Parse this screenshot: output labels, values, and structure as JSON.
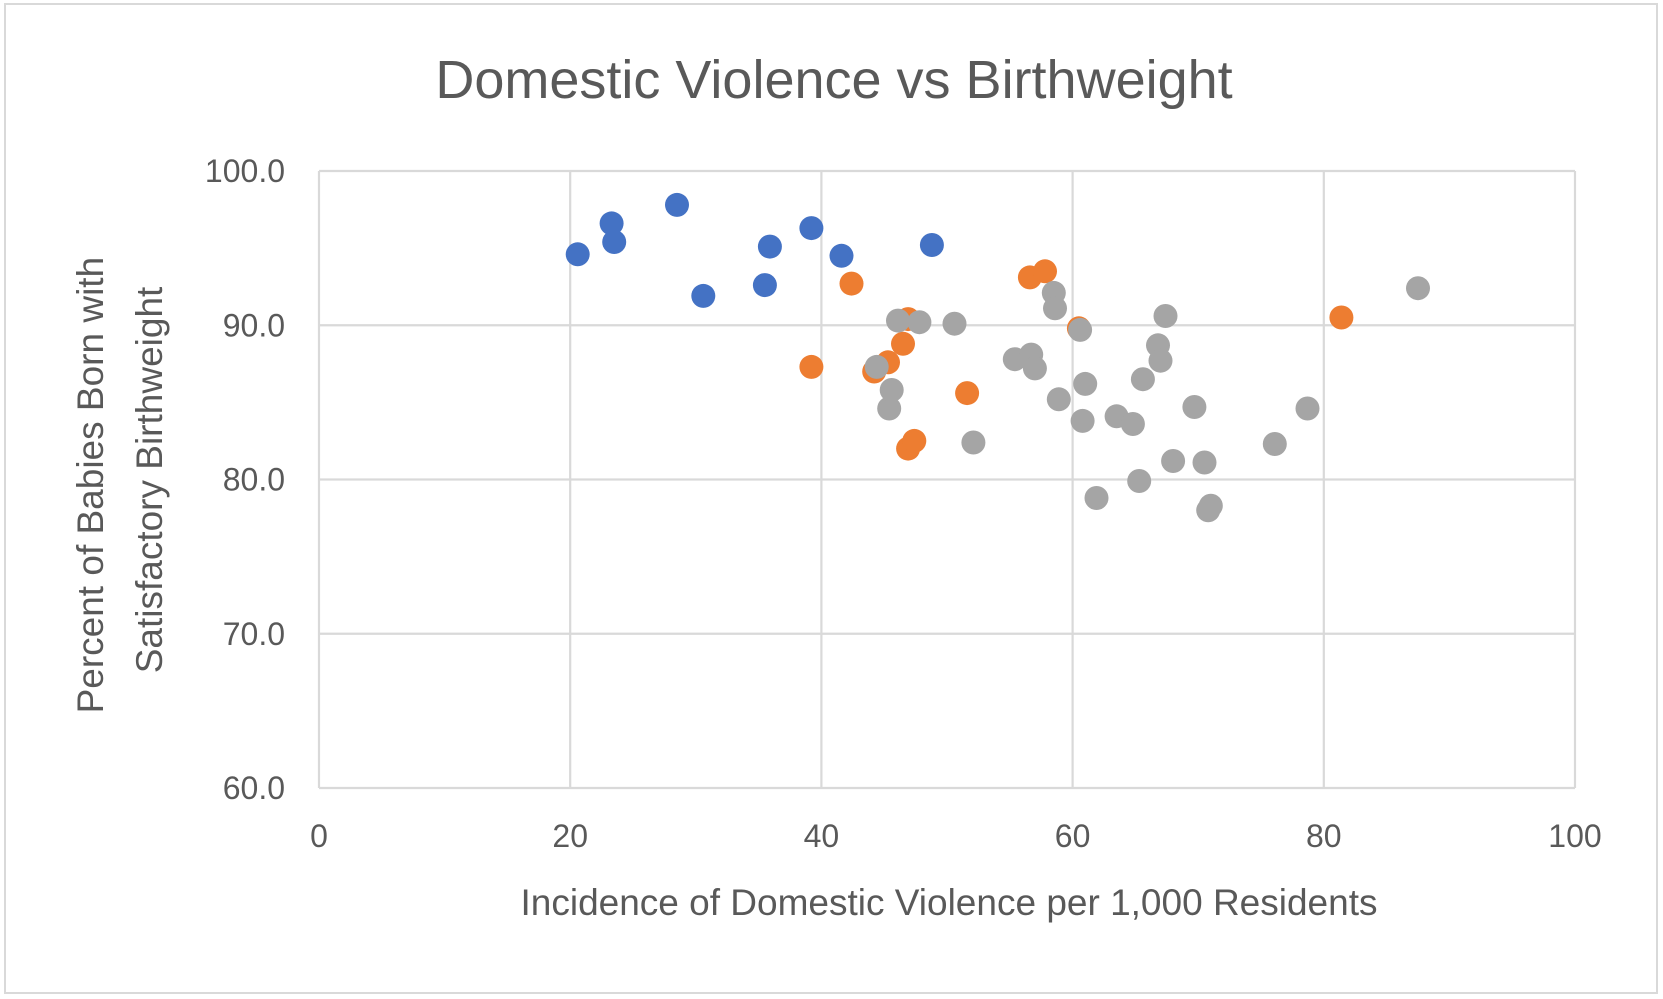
{
  "chart_data": {
    "type": "scatter",
    "title": "Domestic Violence vs Birthweight",
    "xlabel": "Incidence of Domestic Violence per 1,000 Residents",
    "ylabel_lines": [
      "Percent of Babies Born with",
      "Satisfactory Birthweight"
    ],
    "xlim": [
      0,
      100
    ],
    "ylim": [
      60,
      100
    ],
    "x_ticks": [
      "0",
      "20",
      "40",
      "60",
      "80",
      "100"
    ],
    "y_ticks": [
      "60.0",
      "70.0",
      "80.0",
      "90.0",
      "100.0"
    ],
    "x_tick_values": [
      0,
      20,
      40,
      60,
      80,
      100
    ],
    "y_tick_values": [
      60,
      70,
      80,
      90,
      100
    ],
    "grid": true,
    "legend": "none",
    "series": [
      {
        "color": "#4472C4",
        "points": [
          [
            20.6,
            94.6
          ],
          [
            23.3,
            96.6
          ],
          [
            23.5,
            95.4
          ],
          [
            28.5,
            97.8
          ],
          [
            30.6,
            91.9
          ],
          [
            35.5,
            92.6
          ],
          [
            35.9,
            95.1
          ],
          [
            39.2,
            96.3
          ],
          [
            41.6,
            94.5
          ],
          [
            48.8,
            95.2
          ]
        ]
      },
      {
        "color": "#ED7D31",
        "points": [
          [
            39.2,
            87.3
          ],
          [
            42.4,
            92.7
          ],
          [
            44.2,
            87.0
          ],
          [
            45.3,
            87.6
          ],
          [
            46.5,
            88.8
          ],
          [
            46.9,
            90.4
          ],
          [
            46.9,
            82.0
          ],
          [
            47.4,
            82.5
          ],
          [
            51.6,
            85.6
          ],
          [
            56.6,
            93.1
          ],
          [
            57.8,
            93.5
          ],
          [
            60.5,
            89.8
          ],
          [
            81.4,
            90.5
          ]
        ]
      },
      {
        "color": "#A5A5A5",
        "points": [
          [
            44.4,
            87.3
          ],
          [
            45.4,
            84.6
          ],
          [
            45.6,
            85.8
          ],
          [
            46.1,
            90.3
          ],
          [
            47.8,
            90.2
          ],
          [
            50.6,
            90.1
          ],
          [
            52.1,
            82.4
          ],
          [
            55.4,
            87.8
          ],
          [
            56.7,
            88.1
          ],
          [
            57.0,
            87.2
          ],
          [
            58.5,
            92.1
          ],
          [
            58.6,
            91.1
          ],
          [
            58.9,
            85.2
          ],
          [
            60.6,
            89.7
          ],
          [
            60.8,
            83.8
          ],
          [
            61.0,
            86.2
          ],
          [
            61.9,
            78.8
          ],
          [
            63.5,
            84.1
          ],
          [
            64.8,
            83.6
          ],
          [
            65.3,
            79.9
          ],
          [
            65.6,
            86.5
          ],
          [
            66.8,
            88.7
          ],
          [
            67.0,
            87.7
          ],
          [
            67.4,
            90.6
          ],
          [
            68.0,
            81.2
          ],
          [
            69.7,
            84.7
          ],
          [
            70.5,
            81.1
          ],
          [
            70.8,
            78.0
          ],
          [
            71.0,
            78.3
          ],
          [
            76.1,
            82.3
          ],
          [
            78.7,
            84.6
          ],
          [
            87.5,
            92.4
          ]
        ]
      }
    ]
  }
}
